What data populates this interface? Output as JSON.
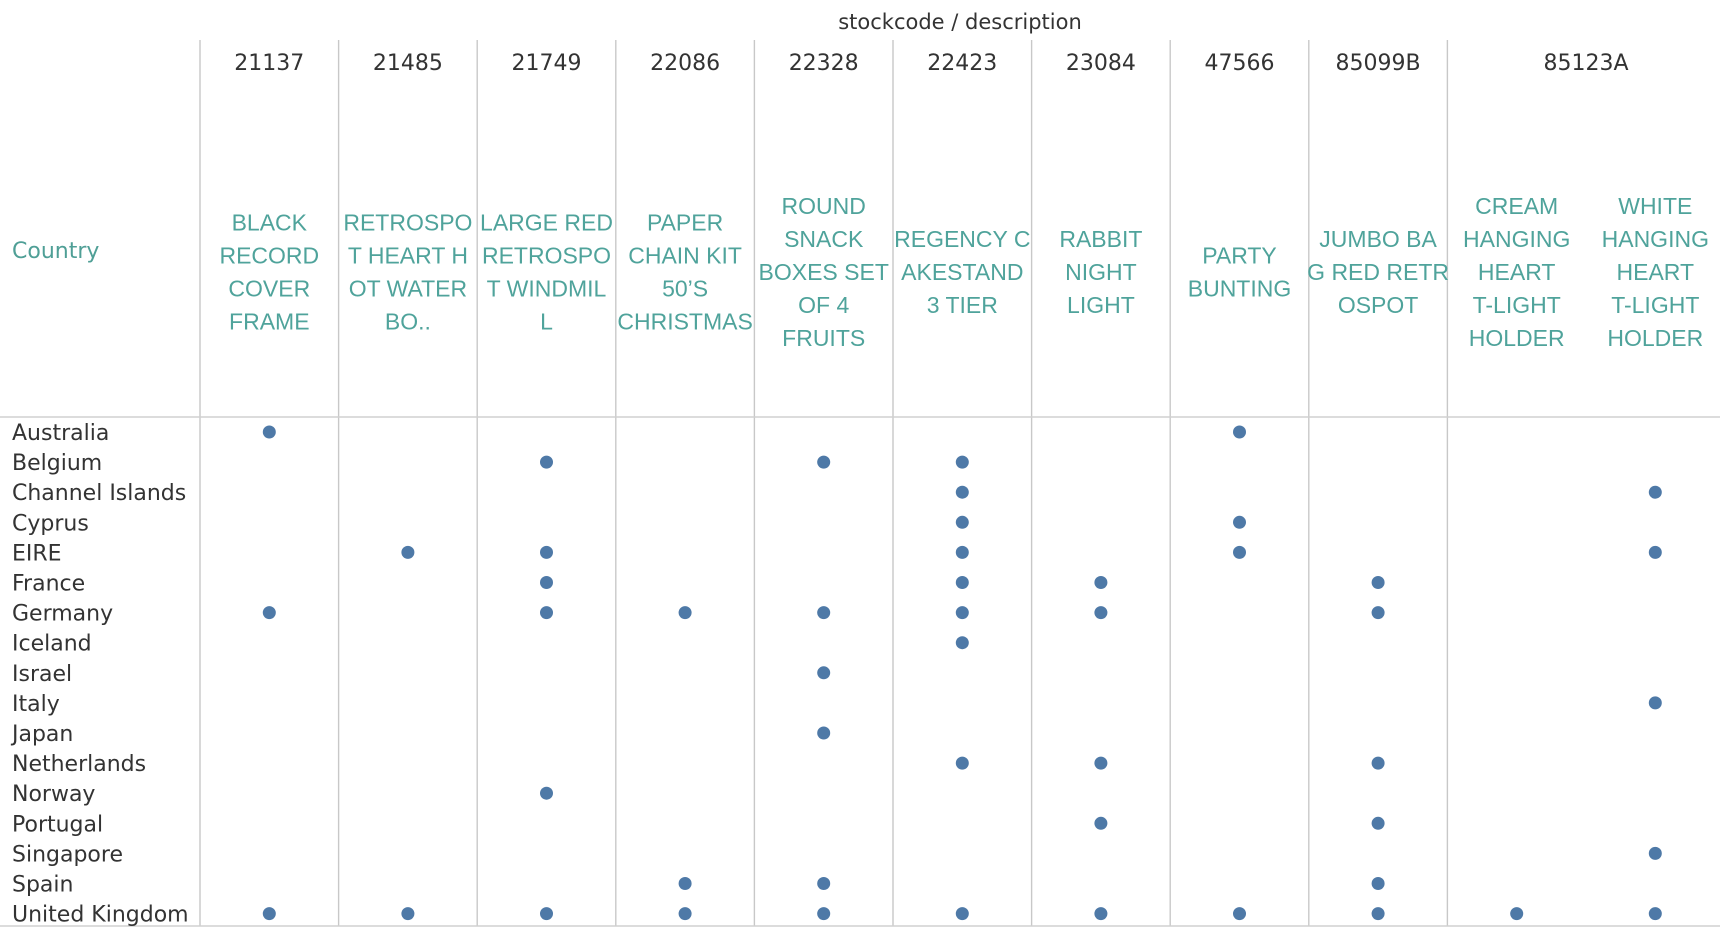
{
  "chart_data": {
    "type": "scatter",
    "column_header": "stockcode / description",
    "row_header": "Country",
    "columns": [
      {
        "code": "21137",
        "descriptions": [
          [
            "BLACK",
            "RECORD",
            "COVER",
            "FRAME"
          ]
        ]
      },
      {
        "code": "21485",
        "descriptions": [
          [
            "RETROSPO",
            "T HEART H",
            "OT WATER",
            "BO.."
          ]
        ]
      },
      {
        "code": "21749",
        "descriptions": [
          [
            "LARGE RED",
            "RETROSPO",
            "T WINDMIL",
            "L"
          ]
        ]
      },
      {
        "code": "22086",
        "descriptions": [
          [
            "PAPER",
            "CHAIN KIT",
            "50’S",
            "CHRISTMAS"
          ]
        ]
      },
      {
        "code": "22328",
        "descriptions": [
          [
            "ROUND",
            "SNACK",
            "BOXES SET",
            "OF 4",
            "FRUITS"
          ]
        ]
      },
      {
        "code": "22423",
        "descriptions": [
          [
            "REGENCY C",
            "AKESTAND",
            "3 TIER"
          ]
        ]
      },
      {
        "code": "23084",
        "descriptions": [
          [
            "RABBIT",
            "NIGHT",
            "LIGHT"
          ]
        ]
      },
      {
        "code": "47566",
        "descriptions": [
          [
            "PARTY",
            "BUNTING"
          ]
        ]
      },
      {
        "code": "85099B",
        "descriptions": [
          [
            "JUMBO BA",
            "G RED RETR",
            "OSPOT"
          ]
        ]
      },
      {
        "code": "85123A",
        "descriptions": [
          [
            "CREAM",
            "HANGING",
            "HEART",
            "T-LIGHT",
            "HOLDER"
          ],
          [
            "WHITE",
            "HANGING",
            "HEART",
            "T-LIGHT",
            "HOLDER"
          ]
        ]
      }
    ],
    "rows": [
      "Australia",
      "Belgium",
      "Channel Islands",
      "Cyprus",
      "EIRE",
      "France",
      "Germany",
      "Iceland",
      "Israel",
      "Italy",
      "Japan",
      "Netherlands",
      "Norway",
      "Portugal",
      "Singapore",
      "Spain",
      "United Kingdom"
    ],
    "marks": {
      "Australia": [
        "BLACK RECORD COVER FRAME",
        "PARTY BUNTING"
      ],
      "Belgium": [
        "LARGE RED RETROSPOT WINDMILL",
        "ROUND SNACK BOXES SET OF 4 FRUITS",
        "REGENCY CAKESTAND 3 TIER"
      ],
      "Channel Islands": [
        "REGENCY CAKESTAND 3 TIER",
        "WHITE HANGING HEART T-LIGHT HOLDER"
      ],
      "Cyprus": [
        "REGENCY CAKESTAND 3 TIER",
        "PARTY BUNTING"
      ],
      "EIRE": [
        "RETROSPOT HEART HOT WATER BO..",
        "LARGE RED RETROSPOT WINDMILL",
        "REGENCY CAKESTAND 3 TIER",
        "PARTY BUNTING",
        "WHITE HANGING HEART T-LIGHT HOLDER"
      ],
      "France": [
        "LARGE RED RETROSPOT WINDMILL",
        "REGENCY CAKESTAND 3 TIER",
        "RABBIT NIGHT LIGHT",
        "JUMBO BAG RED RETROSPOT"
      ],
      "Germany": [
        "BLACK RECORD COVER FRAME",
        "LARGE RED RETROSPOT WINDMILL",
        "PAPER CHAIN KIT 50’S CHRISTMAS",
        "ROUND SNACK BOXES SET OF 4 FRUITS",
        "REGENCY CAKESTAND 3 TIER",
        "RABBIT NIGHT LIGHT",
        "JUMBO BAG RED RETROSPOT"
      ],
      "Iceland": [
        "REGENCY CAKESTAND 3 TIER"
      ],
      "Israel": [
        "ROUND SNACK BOXES SET OF 4 FRUITS"
      ],
      "Italy": [
        "WHITE HANGING HEART T-LIGHT HOLDER"
      ],
      "Japan": [
        "ROUND SNACK BOXES SET OF 4 FRUITS"
      ],
      "Netherlands": [
        "REGENCY CAKESTAND 3 TIER",
        "RABBIT NIGHT LIGHT",
        "JUMBO BAG RED RETROSPOT"
      ],
      "Norway": [
        "LARGE RED RETROSPOT WINDMILL"
      ],
      "Portugal": [
        "RABBIT NIGHT LIGHT",
        "JUMBO BAG RED RETROSPOT"
      ],
      "Singapore": [
        "WHITE HANGING HEART T-LIGHT HOLDER"
      ],
      "Spain": [
        "PAPER CHAIN KIT 50’S CHRISTMAS",
        "ROUND SNACK BOXES SET OF 4 FRUITS",
        "JUMBO BAG RED RETROSPOT"
      ],
      "United Kingdom": [
        "BLACK RECORD COVER FRAME",
        "RETROSPOT HEART HOT WATER BO..",
        "LARGE RED RETROSPOT WINDMILL",
        "PAPER CHAIN KIT 50’S CHRISTMAS",
        "ROUND SNACK BOXES SET OF 4 FRUITS",
        "REGENCY CAKESTAND 3 TIER",
        "RABBIT NIGHT LIGHT",
        "PARTY BUNTING",
        "JUMBO BAG RED RETROSPOT",
        "CREAM HANGING HEART T-LIGHT HOLDER",
        "WHITE HANGING HEART T-LIGHT HOLDER"
      ]
    },
    "mark_color": "#4e79a7",
    "description_color": "#4fa39b",
    "grid": true
  }
}
